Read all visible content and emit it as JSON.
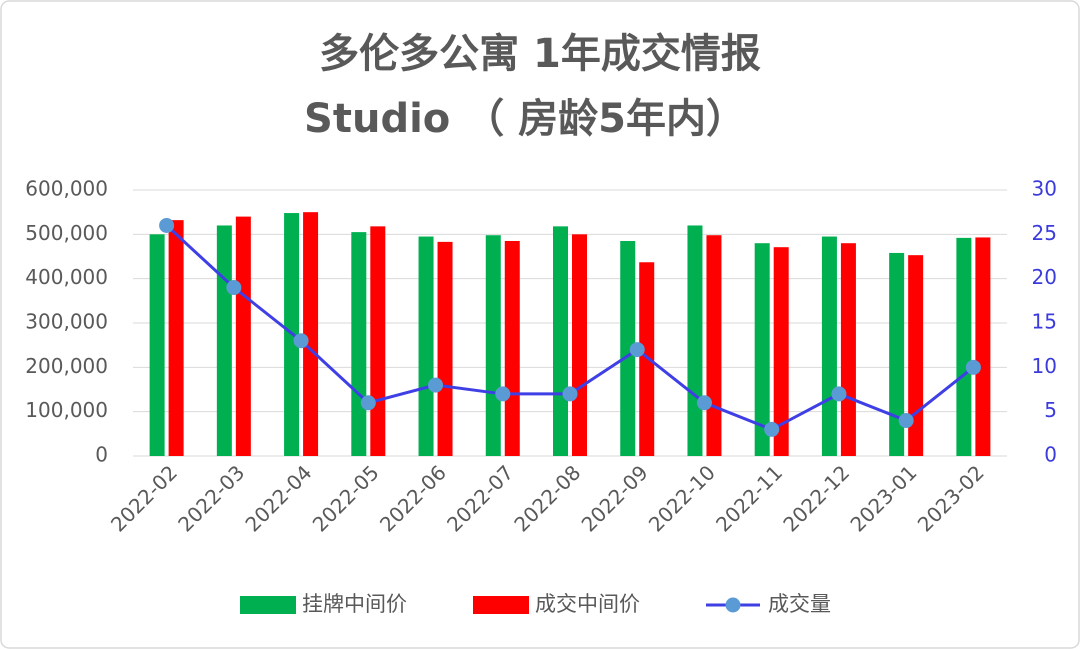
{
  "chart_data": {
    "type": "bar",
    "title": "多伦多公寓 1年成交情报",
    "subtitle": "Studio （ 房龄5年内）",
    "categories": [
      "2022-02",
      "2022-03",
      "2022-04",
      "2022-05",
      "2022-06",
      "2022-07",
      "2022-08",
      "2022-09",
      "2022-10",
      "2022-11",
      "2022-12",
      "2023-01",
      "2023-02"
    ],
    "series": [
      {
        "name": "挂牌中间价",
        "type": "bar",
        "color": "#00b050",
        "values": [
          500000,
          520000,
          548000,
          505000,
          495000,
          498000,
          518000,
          485000,
          520000,
          480000,
          495000,
          458000,
          492000
        ]
      },
      {
        "name": "成交中间价",
        "type": "bar",
        "color": "#ff0000",
        "values": [
          532000,
          540000,
          550000,
          518000,
          483000,
          485000,
          500000,
          437000,
          498000,
          471000,
          480000,
          453000,
          493000
        ]
      },
      {
        "name": "成交量",
        "type": "line",
        "axis": "y2",
        "color": "#3f3fe6",
        "marker_color": "#5b9bd5",
        "values": [
          26,
          19,
          13,
          6,
          8,
          7,
          7,
          12,
          6,
          3,
          7,
          4,
          10
        ]
      }
    ],
    "ylim": [
      0,
      600000
    ],
    "yticks": [
      0,
      {
        "value": 100000,
        "label": "100,000"
      },
      {
        "value": 200000,
        "label": "200,000"
      },
      {
        "value": 300000,
        "label": "300,000"
      },
      {
        "value": 400000,
        "label": "400,000"
      },
      {
        "value": 500000,
        "label": "500,000"
      },
      {
        "value": 600000,
        "label": "600,000"
      }
    ],
    "y2lim": [
      0,
      30
    ],
    "y2ticks": [
      0,
      5,
      10,
      15,
      20,
      25,
      30
    ],
    "y2_color": "#3b3bdc",
    "grid": true,
    "legend": "bottom"
  }
}
